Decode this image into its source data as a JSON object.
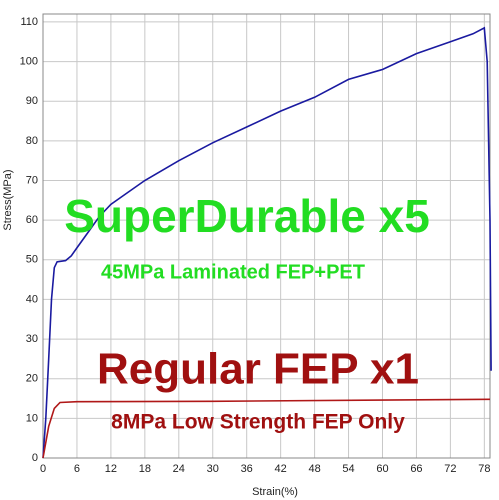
{
  "chart_data": {
    "type": "line",
    "xlabel": "Strain(%)",
    "ylabel": "Stress(MPa)",
    "series": [
      {
        "name": "SuperDurable",
        "color": "#1a1aa0",
        "x": [
          0,
          0.5,
          1,
          1.5,
          2,
          2.5,
          4,
          5,
          6,
          8,
          10,
          12,
          15,
          18,
          24,
          30,
          36,
          42,
          48,
          54,
          60,
          66,
          72,
          76,
          78,
          78.5,
          79,
          79.2
        ],
        "values": [
          0,
          10,
          25,
          40,
          48,
          49.5,
          49.8,
          51,
          53,
          57,
          61,
          64,
          67,
          70,
          75,
          79.5,
          83.5,
          87.5,
          91,
          95.5,
          98,
          102,
          105,
          107,
          108.5,
          100,
          60,
          22
        ]
      },
      {
        "name": "Regular FEP",
        "color": "#b01818",
        "x": [
          0,
          1,
          2,
          3,
          6,
          30,
          60,
          79
        ],
        "values": [
          0,
          8,
          12.5,
          14,
          14.2,
          14.3,
          14.6,
          14.8
        ]
      }
    ],
    "xlim": [
      0,
      79
    ],
    "xticks": [
      0,
      6,
      12,
      18,
      24,
      30,
      36,
      42,
      48,
      54,
      60,
      66,
      72,
      78
    ],
    "ylim": [
      0,
      112
    ],
    "yticks": [
      0,
      10,
      20,
      30,
      40,
      50,
      60,
      70,
      80,
      90,
      100,
      110
    ],
    "grid": true,
    "annotations": [
      {
        "text": "SuperDurable x5",
        "color": "#22dd22"
      },
      {
        "text": "45MPa Laminated FEP+PET",
        "color": "#22dd22"
      },
      {
        "text": "Regular FEP x1",
        "color": "#a01010"
      },
      {
        "text": "8MPa Low Strength FEP Only",
        "color": "#a01010"
      }
    ]
  }
}
